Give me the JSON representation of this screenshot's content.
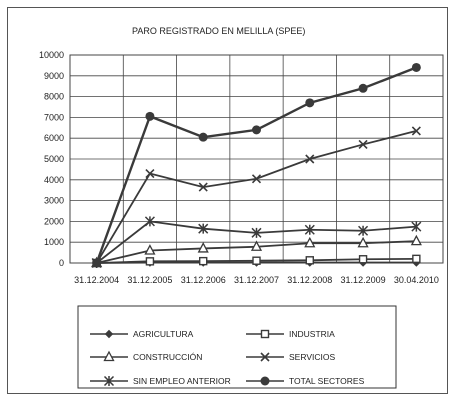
{
  "chart_data": {
    "type": "line",
    "title": "PARO REGISTRADO  EN MELILLA (SPEE)",
    "categories": [
      "31.12.2004",
      "31.12.2005",
      "31.12.2006",
      "31.12.2007",
      "31.12.2008",
      "31.12.2009",
      "30.04.2010"
    ],
    "ylim": [
      0,
      10000
    ],
    "yticks": [
      "0",
      "1000",
      "2000",
      "3000",
      "4000",
      "5000",
      "6000",
      "7000",
      "8000",
      "9000",
      "10000"
    ],
    "grid": true,
    "legend_placement": "bottom",
    "series": [
      {
        "name": "AGRICULTURA",
        "marker": "diamond",
        "values": [
          0,
          20,
          20,
          20,
          20,
          20,
          20
        ]
      },
      {
        "name": "INDUSTRIA",
        "marker": "square",
        "values": [
          0,
          80,
          90,
          110,
          130,
          180,
          200
        ]
      },
      {
        "name": "CONSTRUCCIÓN",
        "marker": "triangle",
        "values": [
          0,
          600,
          700,
          780,
          950,
          950,
          1050
        ]
      },
      {
        "name": "SERVICIOS",
        "marker": "x",
        "values": [
          0,
          4300,
          3650,
          4050,
          5000,
          5700,
          6350
        ]
      },
      {
        "name": "SIN EMPLEO ANTERIOR",
        "marker": "star",
        "values": [
          0,
          2000,
          1650,
          1450,
          1600,
          1550,
          1750
        ]
      },
      {
        "name": "TOTAL SECTORES",
        "marker": "circle",
        "values": [
          0,
          7050,
          6050,
          6400,
          7700,
          8400,
          9400
        ]
      }
    ],
    "colors": {
      "line": "#3a3a3a",
      "marker_fill": "#3a3a3a",
      "open_fill": "#ffffff",
      "grid": "#444444",
      "plot_bg": "#ffffff"
    }
  }
}
